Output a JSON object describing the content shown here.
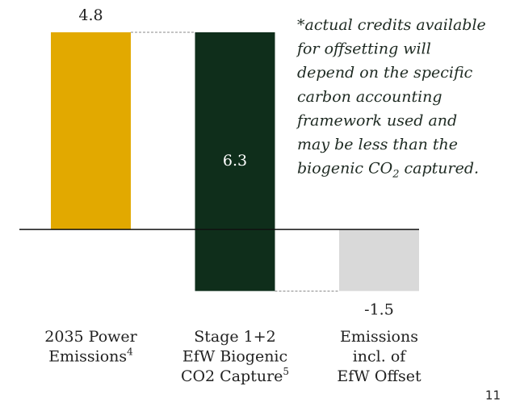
{
  "chart_data": {
    "type": "waterfall",
    "categories": [
      [
        "2035 Power",
        "Emissions"
      ],
      [
        "Stage 1+2",
        "EfW Biogenic",
        "CO2 Capture"
      ],
      [
        "Emissions",
        "incl. of",
        "EfW Offset"
      ]
    ],
    "category_footnotes": [
      "4",
      "5",
      null
    ],
    "values": [
      4.8,
      -6.3,
      -1.5
    ],
    "value_labels": [
      "4.8",
      "6.3",
      "-1.5"
    ],
    "measure": [
      "relative",
      "relative",
      "total"
    ],
    "colors": [
      "#e2a900",
      "#0f2e1b",
      "#d9d9d9"
    ],
    "ylim": [
      -2.5,
      5.5
    ],
    "annotation": [
      "*actual credits available",
      "for offsetting will",
      "depend on the specific",
      "carbon accounting",
      "framework used and",
      "may be less than the",
      [
        "biogenic CO",
        "2",
        " captured."
      ]
    ],
    "page_number": "11"
  }
}
